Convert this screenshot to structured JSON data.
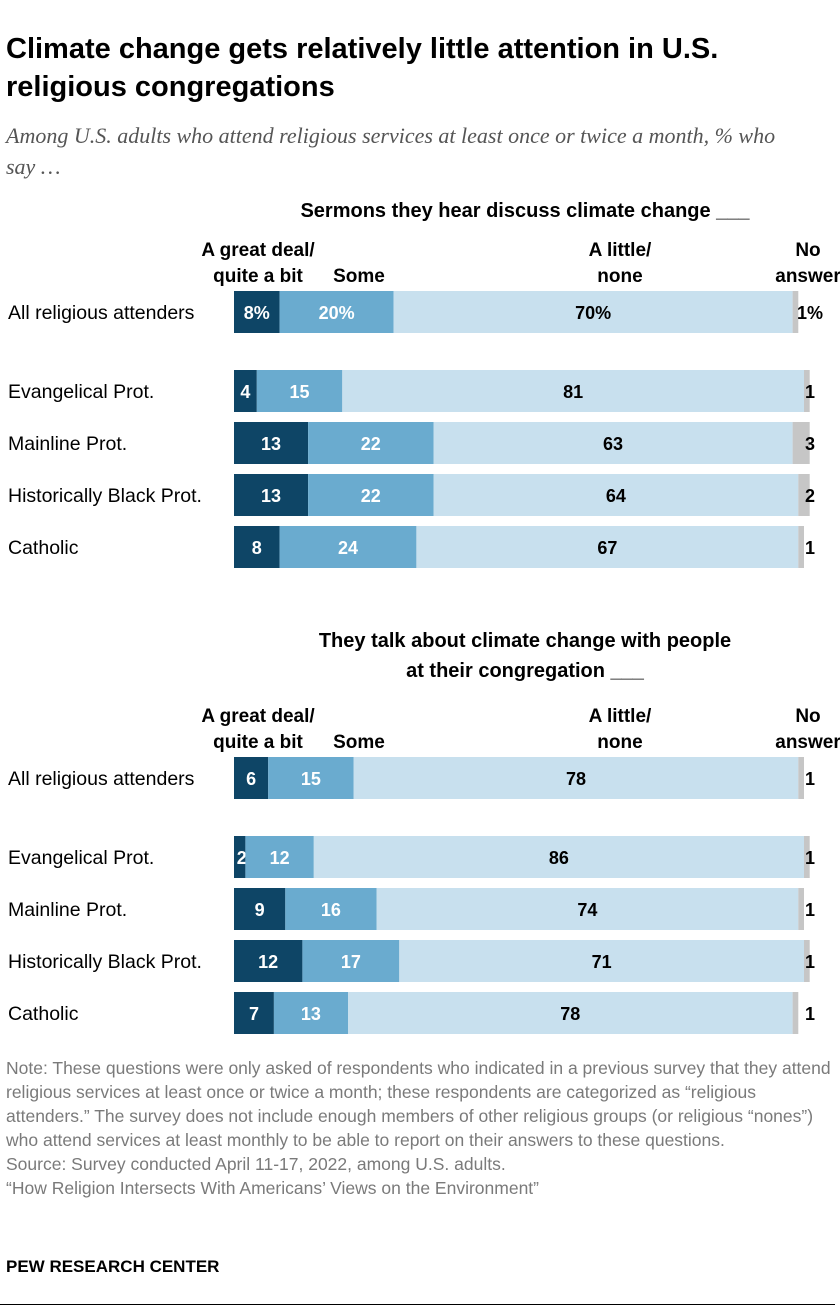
{
  "title": "Climate change gets relatively little attention in U.S. religious congregations",
  "subtitle": "Among U.S. adults who attend religious services at least once or twice a month, % who say …",
  "colors": {
    "great_deal": "#0e4566",
    "some": "#6aabcf",
    "little": "#c8e0ee",
    "no_answer": "#c6c6c6"
  },
  "chart_data": [
    {
      "type": "bar",
      "stacked": true,
      "orientation": "horizontal",
      "title_lines": [
        "Sermons they hear discuss climate change ___"
      ],
      "column_headers": {
        "great_deal": [
          "A great deal/",
          "quite a bit"
        ],
        "some": [
          "Some"
        ],
        "little": [
          "A little/",
          "none"
        ],
        "no_answer": [
          "No",
          "answer"
        ]
      },
      "categories": [
        "All religious attenders",
        "Evangelical Prot.",
        "Mainline Prot.",
        "Historically Black Prot.",
        "Catholic"
      ],
      "series": [
        {
          "key": "great_deal",
          "name": "A great deal/quite a bit",
          "values": [
            8,
            4,
            13,
            13,
            8
          ]
        },
        {
          "key": "some",
          "name": "Some",
          "values": [
            20,
            15,
            22,
            22,
            24
          ]
        },
        {
          "key": "little",
          "name": "A little/none",
          "values": [
            70,
            81,
            63,
            64,
            67
          ]
        },
        {
          "key": "no_answer",
          "name": "No answer",
          "values": [
            1,
            1,
            3,
            2,
            1
          ]
        }
      ],
      "value_labels": [
        [
          "8%",
          "20%",
          "70%",
          "1%"
        ],
        [
          "4",
          "15",
          "81",
          "1"
        ],
        [
          "13",
          "22",
          "63",
          "3"
        ],
        [
          "13",
          "22",
          "64",
          "2"
        ],
        [
          "8",
          "24",
          "67",
          "1"
        ]
      ]
    },
    {
      "type": "bar",
      "stacked": true,
      "orientation": "horizontal",
      "title_lines": [
        "They talk about climate change with people",
        "at their congregation ___"
      ],
      "column_headers": {
        "great_deal": [
          "A great deal/",
          "quite a bit"
        ],
        "some": [
          "Some"
        ],
        "little": [
          "A little/",
          "none"
        ],
        "no_answer": [
          "No",
          "answer"
        ]
      },
      "categories": [
        "All religious attenders",
        "Evangelical Prot.",
        "Mainline Prot.",
        "Historically Black Prot.",
        "Catholic"
      ],
      "series": [
        {
          "key": "great_deal",
          "name": "A great deal/quite a bit",
          "values": [
            6,
            2,
            9,
            12,
            7
          ]
        },
        {
          "key": "some",
          "name": "Some",
          "values": [
            15,
            12,
            16,
            17,
            13
          ]
        },
        {
          "key": "little",
          "name": "A little/none",
          "values": [
            78,
            86,
            74,
            71,
            78
          ]
        },
        {
          "key": "no_answer",
          "name": "No answer",
          "values": [
            1,
            1,
            1,
            1,
            1
          ]
        }
      ],
      "value_labels": [
        [
          "6",
          "15",
          "78",
          "1"
        ],
        [
          "2",
          "12",
          "86",
          "1"
        ],
        [
          "9",
          "16",
          "74",
          "1"
        ],
        [
          "12",
          "17",
          "71",
          "1"
        ],
        [
          "7",
          "13",
          "78",
          "1"
        ]
      ]
    }
  ],
  "notes": {
    "note": "Note: These questions were only asked of respondents who indicated in a previous survey that they attend religious services at least once or twice a month; these respondents are categorized as “religious attenders.” The survey does not include enough members of other religious groups (or religious “nones”) who attend services at least monthly to be able to report on their answers to these questions.",
    "source": "Source: Survey conducted April 11-17, 2022, among U.S. adults.",
    "report": "“How Religion Intersects With Americans’ Views on the Environment”"
  },
  "brand": "PEW RESEARCH CENTER"
}
